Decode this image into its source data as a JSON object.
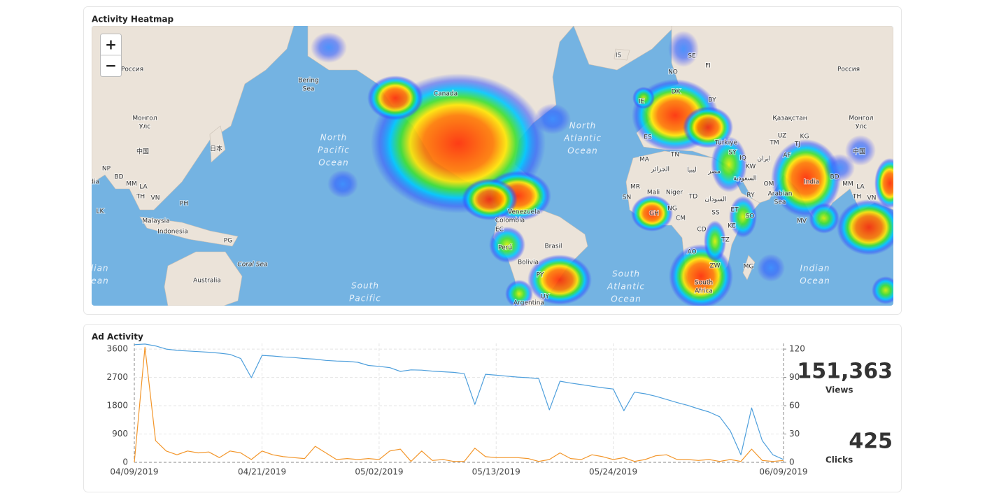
{
  "heatmap": {
    "title": "Activity Heatmap",
    "zoom_in": "+",
    "zoom_out": "−",
    "labels": [
      "Россия",
      [
        "Монгол",
        "Улс"
      ],
      "中国",
      "日本",
      "NP",
      "BD",
      "MM",
      "LA",
      "TH",
      "VN",
      "India",
      "PH",
      "LK",
      "Malaysia",
      "Indonesia",
      "PG",
      "Australia",
      "Coral Sea",
      [
        "Bering",
        "Sea"
      ],
      [
        "North",
        "Pacific",
        "Ocean"
      ],
      [
        "South",
        "Pacific"
      ],
      [
        "Indian",
        "Ocean"
      ],
      "Canada",
      "Venezuela",
      "Colombia",
      "EC",
      "Perú",
      "Brasil",
      "Bolivia",
      "PY",
      "UY",
      "Argentina",
      "IS",
      "SE",
      "FI",
      "NO",
      "DK",
      "BY",
      "IE",
      "ES",
      "TN",
      "MA",
      "الجزائر",
      "ليبيا",
      "مصر",
      "Mali",
      "Niger",
      "TD",
      "السودان",
      "MR",
      "SN",
      "GH",
      "NG",
      "CM",
      "SS",
      "ET",
      "SO",
      "KE",
      "CD",
      "TZ",
      "AO",
      "ZW",
      "MG",
      [
        "South",
        "Africa"
      ],
      "Türkiye",
      "SY",
      "IQ",
      "KW",
      "RY",
      "OM",
      "السعودية",
      [
        "Arabian",
        "Sea"
      ],
      "ایران",
      "AF",
      "Қазақстан",
      "UZ",
      "KG",
      "TM",
      "TJ",
      "India",
      "BD",
      "MM",
      "LA",
      "TH",
      "VN",
      "中国",
      [
        "Монгол",
        "Улс"
      ],
      "Россия",
      "MV",
      [
        "North",
        "Atlantic",
        "Ocean"
      ],
      [
        "South",
        "Atlantic",
        "Ocean"
      ],
      [
        "Indian",
        "Ocean"
      ]
    ]
  },
  "chart_data": {
    "type": "line",
    "title": "Ad Activity",
    "x": [
      "04/09/2019",
      "04/10/2019",
      "04/11/2019",
      "04/12/2019",
      "04/13/2019",
      "04/14/2019",
      "04/15/2019",
      "04/16/2019",
      "04/17/2019",
      "04/18/2019",
      "04/19/2019",
      "04/20/2019",
      "04/21/2019",
      "04/22/2019",
      "04/23/2019",
      "04/24/2019",
      "04/25/2019",
      "04/26/2019",
      "04/27/2019",
      "04/28/2019",
      "04/29/2019",
      "04/30/2019",
      "05/01/2019",
      "05/02/2019",
      "05/03/2019",
      "05/04/2019",
      "05/05/2019",
      "05/06/2019",
      "05/07/2019",
      "05/08/2019",
      "05/09/2019",
      "05/10/2019",
      "05/11/2019",
      "05/12/2019",
      "05/13/2019",
      "05/14/2019",
      "05/15/2019",
      "05/16/2019",
      "05/17/2019",
      "05/18/2019",
      "05/19/2019",
      "05/20/2019",
      "05/21/2019",
      "05/22/2019",
      "05/23/2019",
      "05/24/2019",
      "05/25/2019",
      "05/26/2019",
      "05/27/2019",
      "05/28/2019",
      "05/29/2019",
      "05/30/2019",
      "05/31/2019",
      "06/01/2019",
      "06/02/2019",
      "06/03/2019",
      "06/04/2019",
      "06/05/2019",
      "06/06/2019",
      "06/07/2019",
      "06/08/2019",
      "06/09/2019"
    ],
    "series": [
      {
        "name": "Views",
        "color": "#4e9fdc",
        "values": [
          3740,
          3760,
          3700,
          3600,
          3560,
          3540,
          3520,
          3500,
          3470,
          3430,
          3300,
          2690,
          3400,
          3380,
          3350,
          3330,
          3300,
          3280,
          3240,
          3220,
          3210,
          3180,
          3080,
          3050,
          3010,
          2890,
          2940,
          2930,
          2900,
          2880,
          2860,
          2820,
          1840,
          2800,
          2770,
          2740,
          2710,
          2690,
          2660,
          1670,
          2580,
          2520,
          2470,
          2420,
          2370,
          2330,
          1640,
          2230,
          2180,
          2100,
          2000,
          1900,
          1810,
          1700,
          1600,
          1450,
          1000,
          240,
          1730,
          690,
          240,
          90
        ]
      },
      {
        "name": "Clicks",
        "color": "#f3962a",
        "axis": "y2",
        "values": [
          0,
          122,
          23,
          12,
          8,
          12,
          10,
          11,
          5,
          12,
          10,
          3,
          12,
          8,
          6,
          5,
          4,
          17,
          10,
          3,
          4,
          3,
          4,
          3,
          12,
          14,
          1,
          12,
          2,
          3,
          1,
          1,
          15,
          6,
          5,
          5,
          5,
          4,
          1,
          3,
          10,
          4,
          3,
          8,
          6,
          3,
          5,
          1,
          3,
          7,
          8,
          3,
          3,
          2,
          3,
          1,
          3,
          1,
          14,
          2,
          1,
          2
        ]
      }
    ],
    "ylim": [
      0,
      3780
    ],
    "yticks": [
      0,
      900,
      1800,
      2700,
      3600
    ],
    "y2lim": [
      0,
      126
    ],
    "y2ticks": [
      0,
      30,
      60,
      90,
      120
    ],
    "xticks": [
      "04/09/2019",
      "04/21/2019",
      "05/02/2019",
      "05/13/2019",
      "05/24/2019",
      "06/09/2019"
    ],
    "grid": true
  },
  "kpis": [
    {
      "value": 151363,
      "label": "151,363"
    },
    {
      "value": 425,
      "label": "425"
    }
  ]
}
